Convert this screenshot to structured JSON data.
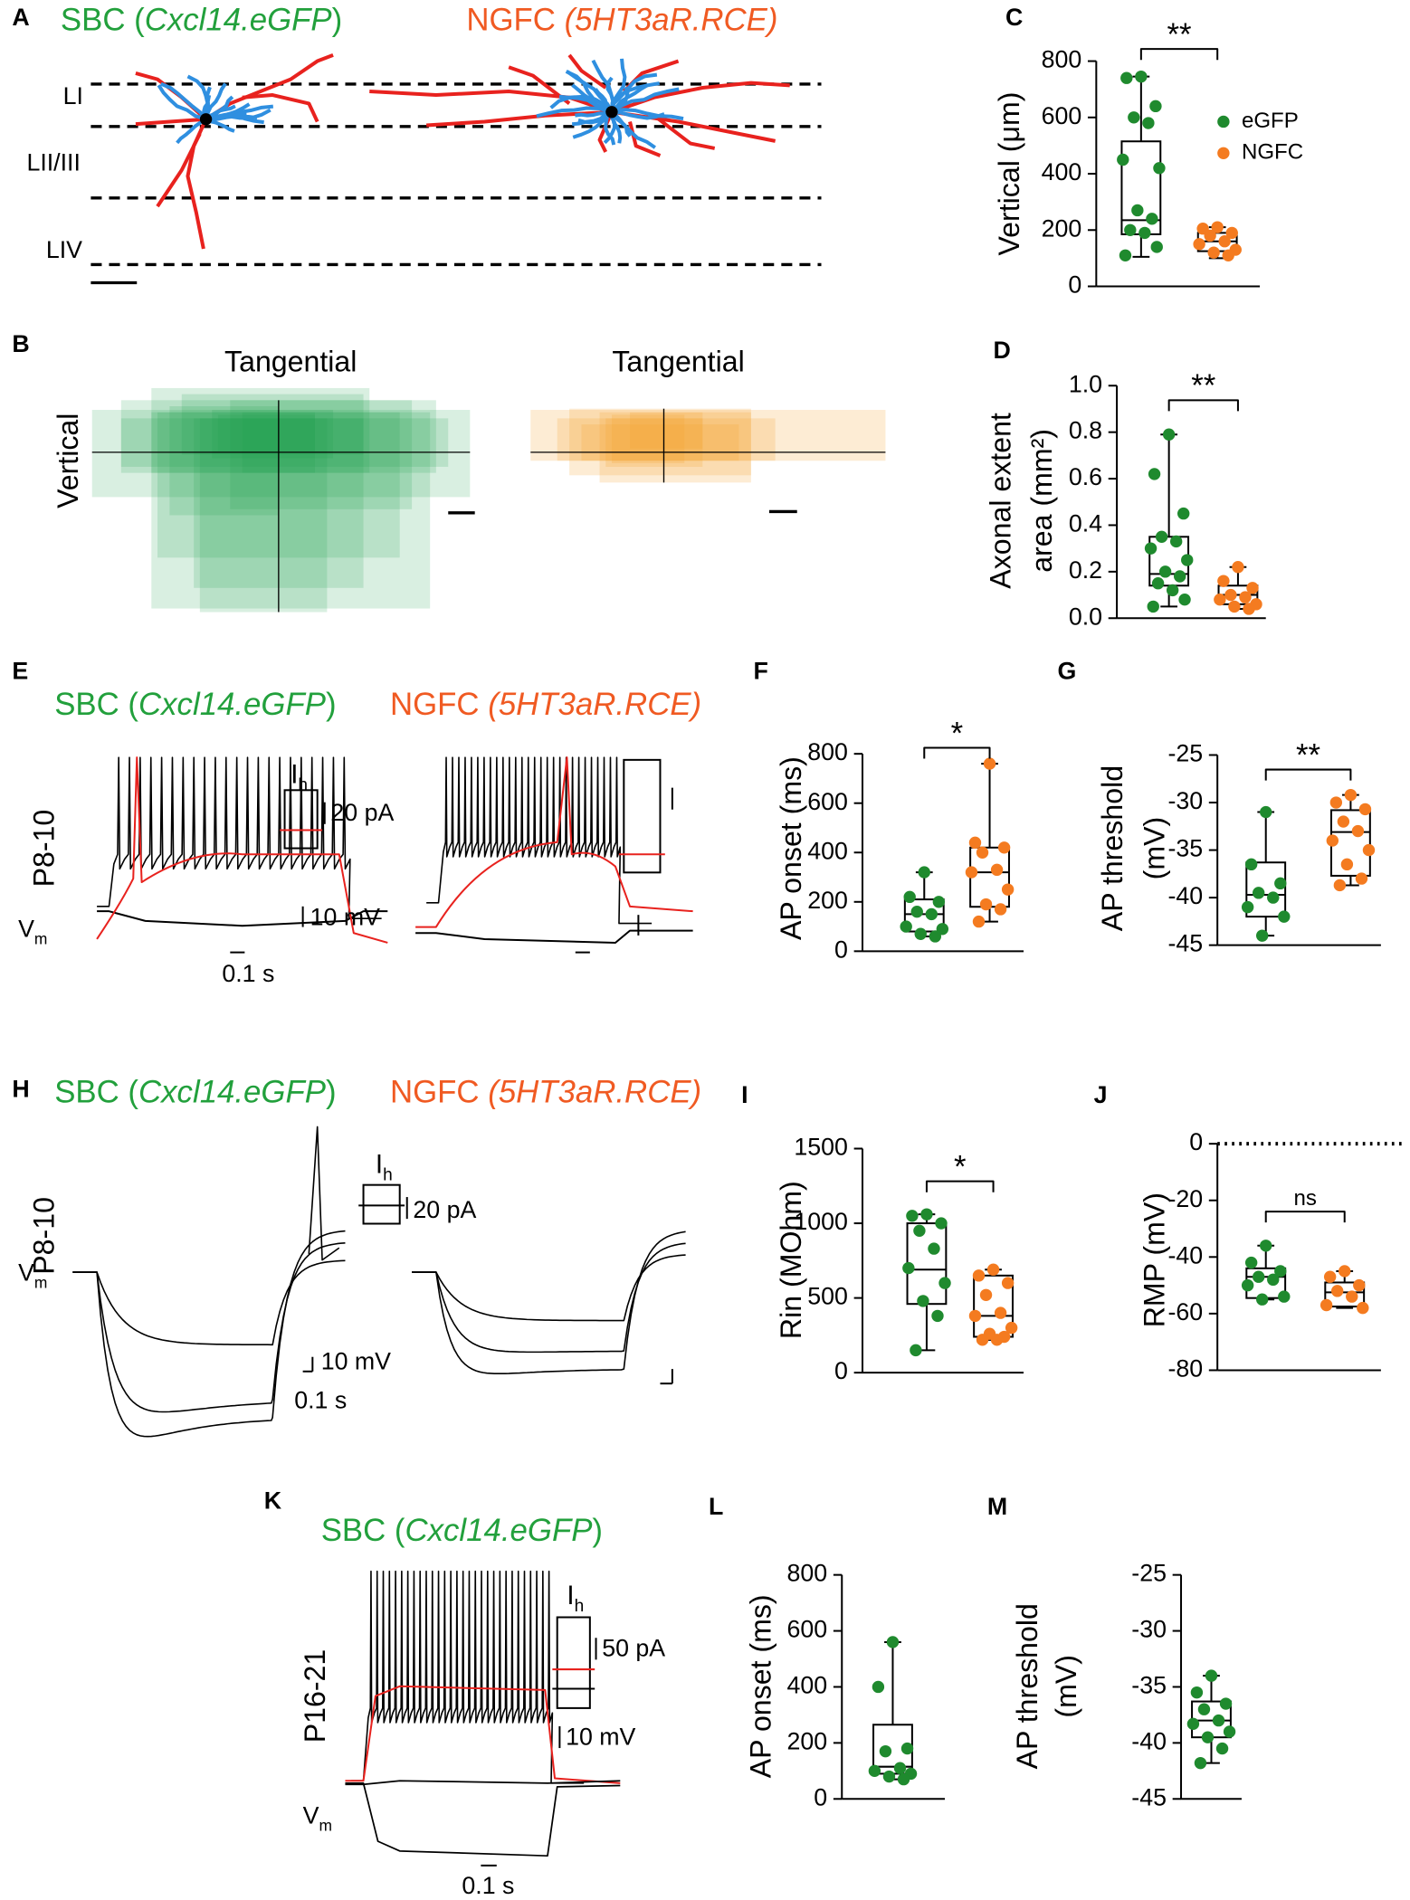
{
  "panel_a": {
    "label": "A",
    "sbc_title": [
      "SBC (",
      "Cxcl14.eGFP",
      ")"
    ],
    "ngfc_title": [
      "NGFC ",
      "(5HT3aR.RCE)"
    ],
    "layers": [
      "LI",
      "LII/III",
      "LIV"
    ]
  },
  "panel_b": {
    "label": "B",
    "tangential_left": "Tangential",
    "tangential_right": "Tangential",
    "vertical": "Vertical"
  },
  "panel_e": {
    "label": "E",
    "sbc_title": [
      "SBC (",
      "Cxcl14.eGFP",
      ")"
    ],
    "ngfc_title": [
      "NGFC ",
      "(5HT3aR.RCE)"
    ],
    "age": "P8-10",
    "ih": [
      "I",
      "h"
    ],
    "current_scale": "20 pA",
    "voltage_scale": "10 mV",
    "vm": [
      "V",
      "m"
    ],
    "time_scale": "0.1 s"
  },
  "panel_h": {
    "label": "H",
    "sbc_title": [
      "SBC (",
      "Cxcl14.eGFP",
      ")"
    ],
    "ngfc_title": [
      "NGFC ",
      "(5HT3aR.RCE)"
    ],
    "age": "P8-10",
    "ih": [
      "I",
      "h"
    ],
    "current_scale": "20 pA",
    "voltage_scale": "10 mV",
    "vm": [
      "V",
      "m"
    ],
    "time_scale": "0.1 s"
  },
  "panel_k": {
    "label": "K",
    "sbc_title": [
      "SBC (",
      "Cxcl14.eGFP",
      ")"
    ],
    "age": "P16-21",
    "ih": [
      "I",
      "h"
    ],
    "current_scale": "50 pA",
    "voltage_scale": "10 mV",
    "vm": [
      "V",
      "m"
    ],
    "time_scale": "0.1 s"
  },
  "chart_data": [
    {
      "type": "box",
      "panel": "C",
      "ylabel": [
        "Vertical (μm)"
      ],
      "ylim": [
        0,
        800
      ],
      "yticks": [
        0,
        200,
        400,
        600,
        800
      ],
      "significance": "**",
      "legend": "upper right",
      "groups": [
        {
          "name": "eGFP",
          "color": "#1f8a2e",
          "whisker": [
            105,
            745
          ],
          "box": [
            185,
            515
          ],
          "median": 235,
          "points": [
            745,
            740,
            640,
            600,
            580,
            450,
            420,
            270,
            240,
            200,
            190,
            140,
            110
          ]
        },
        {
          "name": "NGFC",
          "color": "#f47b20",
          "whisker": [
            100,
            210
          ],
          "box": [
            125,
            190
          ],
          "median": 160,
          "points": [
            210,
            205,
            190,
            180,
            160,
            150,
            130,
            120,
            110
          ]
        }
      ]
    },
    {
      "type": "box",
      "panel": "D",
      "ylabel": [
        "Axonal extent",
        "area (mm²)"
      ],
      "ylim": [
        0,
        1
      ],
      "yticks": [
        {
          "value": 0,
          "label": "0.0"
        },
        0.2,
        0.4,
        0.6,
        0.8,
        {
          "value": 1,
          "label": "1.0"
        }
      ],
      "significance": "**",
      "groups": [
        {
          "color": "#1f8a2e",
          "whisker": [
            0.05,
            0.79
          ],
          "box": [
            0.14,
            0.35
          ],
          "median": 0.19,
          "points": [
            0.79,
            0.62,
            0.45,
            0.35,
            0.33,
            0.3,
            0.25,
            0.2,
            0.18,
            0.15,
            0.12,
            0.08,
            0.05
          ]
        },
        {
          "color": "#f47b20",
          "whisker": [
            0.04,
            0.22
          ],
          "box": [
            0.06,
            0.14
          ],
          "median": 0.1,
          "points": [
            0.22,
            0.16,
            0.13,
            0.1,
            0.09,
            0.08,
            0.06,
            0.05,
            0.04
          ]
        }
      ]
    },
    {
      "type": "box",
      "panel": "F",
      "ylabel": [
        "AP onset (ms)"
      ],
      "ylim": [
        0,
        800
      ],
      "yticks": [
        0,
        200,
        400,
        600,
        800
      ],
      "significance": "*",
      "groups": [
        {
          "color": "#1f8a2e",
          "whisker": [
            60,
            320
          ],
          "box": [
            80,
            210
          ],
          "median": 150,
          "points": [
            320,
            220,
            200,
            160,
            150,
            100,
            90,
            70,
            60
          ]
        },
        {
          "color": "#f47b20",
          "whisker": [
            120,
            760
          ],
          "box": [
            180,
            420
          ],
          "median": 320,
          "points": [
            760,
            440,
            420,
            400,
            330,
            320,
            250,
            190,
            170,
            120
          ]
        }
      ]
    },
    {
      "type": "box",
      "panel": "G",
      "ylabel": [
        "AP threshold",
        "(mV)"
      ],
      "ylim": [
        -45,
        -25
      ],
      "yticks": [
        -45,
        -40,
        -35,
        -30,
        -25
      ],
      "significance": "**",
      "groups": [
        {
          "color": "#1f8a2e",
          "whisker": [
            -44,
            -31
          ],
          "box": [
            -42,
            -36.3
          ],
          "median": -39.7,
          "points": [
            -31,
            -36.5,
            -38.5,
            -39.5,
            -40,
            -41,
            -42,
            -44
          ]
        },
        {
          "color": "#f47b20",
          "whisker": [
            -38.7,
            -29.2
          ],
          "box": [
            -37.7,
            -30.8
          ],
          "median": -33.1,
          "points": [
            -29.2,
            -30,
            -30.7,
            -32,
            -33,
            -34,
            -35,
            -36.5,
            -38,
            -38.7
          ]
        }
      ]
    },
    {
      "type": "box",
      "panel": "I",
      "ylabel": [
        "Rin (MOhm)"
      ],
      "ylim": [
        0,
        1500
      ],
      "yticks": [
        0,
        500,
        1000,
        1500
      ],
      "significance": "*",
      "groups": [
        {
          "color": "#1f8a2e",
          "whisker": [
            150,
            1060
          ],
          "box": [
            460,
            1000
          ],
          "median": 690,
          "points": [
            1060,
            1050,
            1000,
            950,
            830,
            700,
            600,
            480,
            380,
            150
          ]
        },
        {
          "color": "#f47b20",
          "whisker": [
            220,
            690
          ],
          "box": [
            240,
            650
          ],
          "median": 380,
          "points": [
            690,
            650,
            600,
            520,
            400,
            380,
            300,
            260,
            240,
            220,
            220
          ]
        }
      ]
    },
    {
      "type": "box",
      "panel": "J",
      "ylabel": [
        "RMP (mV)"
      ],
      "ylim": [
        -80,
        0
      ],
      "yticks": [
        -80,
        -60,
        -40,
        -20,
        0
      ],
      "significance": "ns",
      "zero_line": true,
      "groups": [
        {
          "color": "#1f8a2e",
          "whisker": [
            -55,
            -36
          ],
          "box": [
            -54.5,
            -44
          ],
          "median": -47,
          "points": [
            -36,
            -42,
            -45,
            -47,
            -48,
            -50,
            -54,
            -55
          ]
        },
        {
          "color": "#f47b20",
          "whisker": [
            -58,
            -45
          ],
          "box": [
            -57.5,
            -49
          ],
          "median": -52.5,
          "points": [
            -45,
            -47,
            -50,
            -52,
            -54,
            -57,
            -58
          ]
        }
      ]
    },
    {
      "type": "box",
      "panel": "L",
      "ylabel": [
        "AP onset (ms)"
      ],
      "ylim": [
        0,
        800
      ],
      "yticks": [
        0,
        200,
        400,
        600,
        800
      ],
      "groups": [
        {
          "color": "#1f8a2e",
          "whisker": [
            70,
            560
          ],
          "box": [
            90,
            265
          ],
          "median": 115,
          "points": [
            560,
            400,
            180,
            170,
            110,
            100,
            90,
            80,
            70
          ]
        }
      ]
    },
    {
      "type": "box",
      "panel": "M",
      "ylabel": [
        "AP threshold",
        "(mV)"
      ],
      "ylim": [
        -45,
        -25
      ],
      "yticks": [
        -45,
        -40,
        -35,
        -30,
        -25
      ],
      "groups": [
        {
          "color": "#1f8a2e",
          "whisker": [
            -41.8,
            -34
          ],
          "box": [
            -39.5,
            -36.3
          ],
          "median": -38,
          "points": [
            -34,
            -35.5,
            -36.5,
            -37,
            -38,
            -38.3,
            -39,
            -39.5,
            -40.5,
            -41.8
          ]
        }
      ]
    }
  ]
}
